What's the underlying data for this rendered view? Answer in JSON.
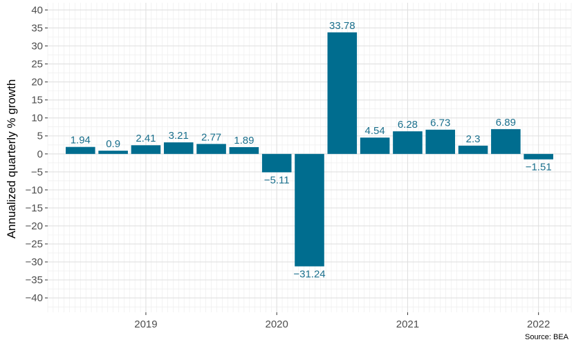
{
  "chart_data": {
    "type": "bar",
    "ylabel": "Annualized quarterly % growth",
    "xlabel": "",
    "caption": "Source: BEA",
    "ylim": [
      -44,
      42
    ],
    "y_ticks": [
      40,
      35,
      30,
      25,
      20,
      15,
      10,
      5,
      0,
      -5,
      -10,
      -15,
      -20,
      -25,
      -30,
      -35,
      -40
    ],
    "y_tick_labels": [
      "40",
      "35",
      "30",
      "25",
      "20",
      "15",
      "10",
      "5",
      "0",
      "−5",
      "−10",
      "−15",
      "−20",
      "−25",
      "−30",
      "−35",
      "−40"
    ],
    "x_ticks": [
      {
        "label": "2019",
        "x": 2019.0
      },
      {
        "label": "2020",
        "x": 2020.0
      },
      {
        "label": "2021",
        "x": 2021.0
      },
      {
        "label": "2022",
        "x": 2022.0
      }
    ],
    "x_range": [
      2018.25,
      2022.25
    ],
    "bars": [
      {
        "x": 2018.5,
        "value": 1.94,
        "label": "1.94"
      },
      {
        "x": 2018.75,
        "value": 0.9,
        "label": "0.9"
      },
      {
        "x": 2019.0,
        "value": 2.41,
        "label": "2.41"
      },
      {
        "x": 2019.25,
        "value": 3.21,
        "label": "3.21"
      },
      {
        "x": 2019.5,
        "value": 2.77,
        "label": "2.77"
      },
      {
        "x": 2019.75,
        "value": 1.89,
        "label": "1.89"
      },
      {
        "x": 2020.0,
        "value": -5.11,
        "label": "−5.11"
      },
      {
        "x": 2020.25,
        "value": -31.24,
        "label": "−31.24"
      },
      {
        "x": 2020.5,
        "value": 33.78,
        "label": "33.78"
      },
      {
        "x": 2020.75,
        "value": 4.54,
        "label": "4.54"
      },
      {
        "x": 2021.0,
        "value": 6.28,
        "label": "6.28"
      },
      {
        "x": 2021.25,
        "value": 6.73,
        "label": "6.73"
      },
      {
        "x": 2021.5,
        "value": 2.3,
        "label": "2.3"
      },
      {
        "x": 2021.75,
        "value": 6.89,
        "label": "6.89"
      },
      {
        "x": 2022.0,
        "value": -1.51,
        "label": "−1.51"
      }
    ],
    "bar_color": "#006d8f",
    "label_color": "#1a6f8c",
    "grid": true,
    "legend": false
  }
}
